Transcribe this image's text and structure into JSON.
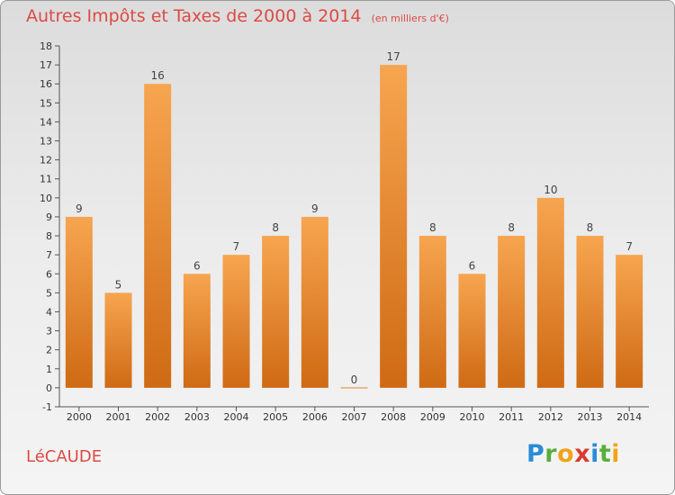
{
  "chart_data": {
    "type": "bar",
    "title": "Autres Impôts et Taxes de 2000 à 2014",
    "subtitle": "(en milliers d'€)",
    "categories": [
      "2000",
      "2001",
      "2002",
      "2003",
      "2004",
      "2005",
      "2006",
      "2007",
      "2008",
      "2009",
      "2010",
      "2011",
      "2012",
      "2013",
      "2014"
    ],
    "values": [
      9,
      5,
      16,
      6,
      7,
      8,
      9,
      0,
      17,
      8,
      6,
      8,
      10,
      8,
      7
    ],
    "data_labels": [
      "9",
      "5",
      "16",
      "6",
      "7",
      "8",
      "9",
      "0",
      "17",
      "8",
      "6",
      "8",
      "10",
      "8",
      "7"
    ],
    "ylim": [
      -1,
      18
    ],
    "yticks": [
      -1,
      0,
      1,
      2,
      3,
      4,
      5,
      6,
      7,
      8,
      9,
      10,
      11,
      12,
      13,
      14,
      15,
      16,
      17,
      18
    ],
    "grid": false,
    "bar_color": "#f0923a",
    "xlabel": "",
    "ylabel": ""
  },
  "footer": {
    "place": "LéCAUDE",
    "logo_letters": [
      {
        "ch": "P",
        "color": "#2a8bd6"
      },
      {
        "ch": "r",
        "color": "#5aae3c"
      },
      {
        "ch": "o",
        "color": "#f2a31a"
      },
      {
        "ch": "x",
        "color": "#d93a32"
      },
      {
        "ch": "i",
        "color": "#2a8bd6"
      },
      {
        "ch": "t",
        "color": "#5aae3c"
      },
      {
        "ch": "i",
        "color": "#f2a31a"
      }
    ]
  }
}
